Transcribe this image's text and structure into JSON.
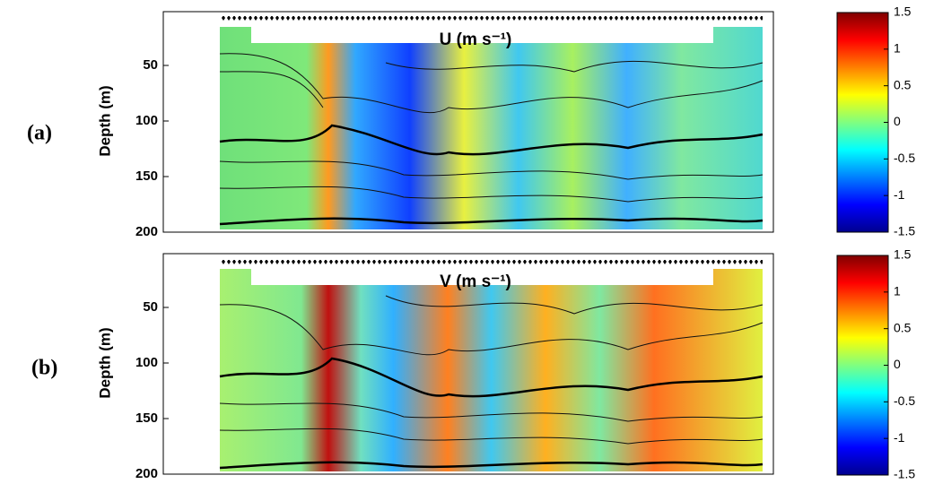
{
  "chart_data": [
    {
      "type": "heatmap",
      "panel_label": "(a)",
      "title": "U (m s⁻¹)",
      "ylabel": "Depth (m)",
      "ylim": [
        0,
        200
      ],
      "yticks": [
        50,
        100,
        150,
        200
      ],
      "y_inverted": true,
      "colormap": "jet",
      "clim": [
        -1.5,
        1.5
      ],
      "cticks": [
        1.5,
        1,
        0.5,
        0,
        -0.5,
        -1,
        -1.5
      ]
    },
    {
      "type": "heatmap",
      "panel_label": "(b)",
      "title": "V (m s⁻¹)",
      "ylabel": "Depth (m)",
      "ylim": [
        0,
        200
      ],
      "yticks": [
        50,
        100,
        150,
        200
      ],
      "y_inverted": true,
      "colormap": "jet",
      "clim": [
        -1.5,
        1.5
      ],
      "cticks": [
        1.5,
        1,
        0.5,
        0,
        -0.5,
        -1,
        -1.5
      ]
    }
  ]
}
